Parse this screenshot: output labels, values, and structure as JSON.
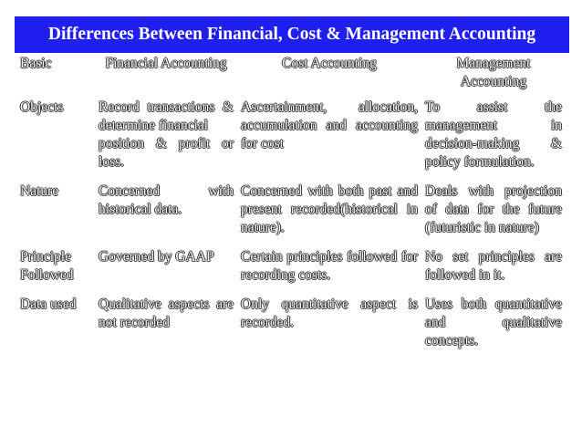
{
  "header": {
    "title": "Differences Between Financial, Cost & Management Accounting"
  },
  "table": {
    "columns": [
      "Basic",
      "Financial Accounting",
      "Cost Accounting",
      "Management Accounting"
    ],
    "rows": [
      [
        "Objects",
        [
          "Record transactions & determine financial",
          "position & profit or loss."
        ],
        "Ascertainment, allocation, accumulation and accounting for cost",
        "To assist the management in decision-making & policy formulation."
      ],
      [
        "Nature",
        "Concerned with historical data.",
        "Concerned with both past and present recorded(historical in nature).",
        "Deals with projection of data for the future (futuristic in nature)"
      ],
      [
        "Principle Followed",
        "Governed by GAAP",
        "Certain principles followed for recording costs.",
        "No set principles are followed in it."
      ],
      [
        "Data used",
        "Qualitative aspects are not recorded",
        "Only quantitative aspect is recorded.",
        "Uses both quantitative and qualitative concepts."
      ]
    ]
  }
}
